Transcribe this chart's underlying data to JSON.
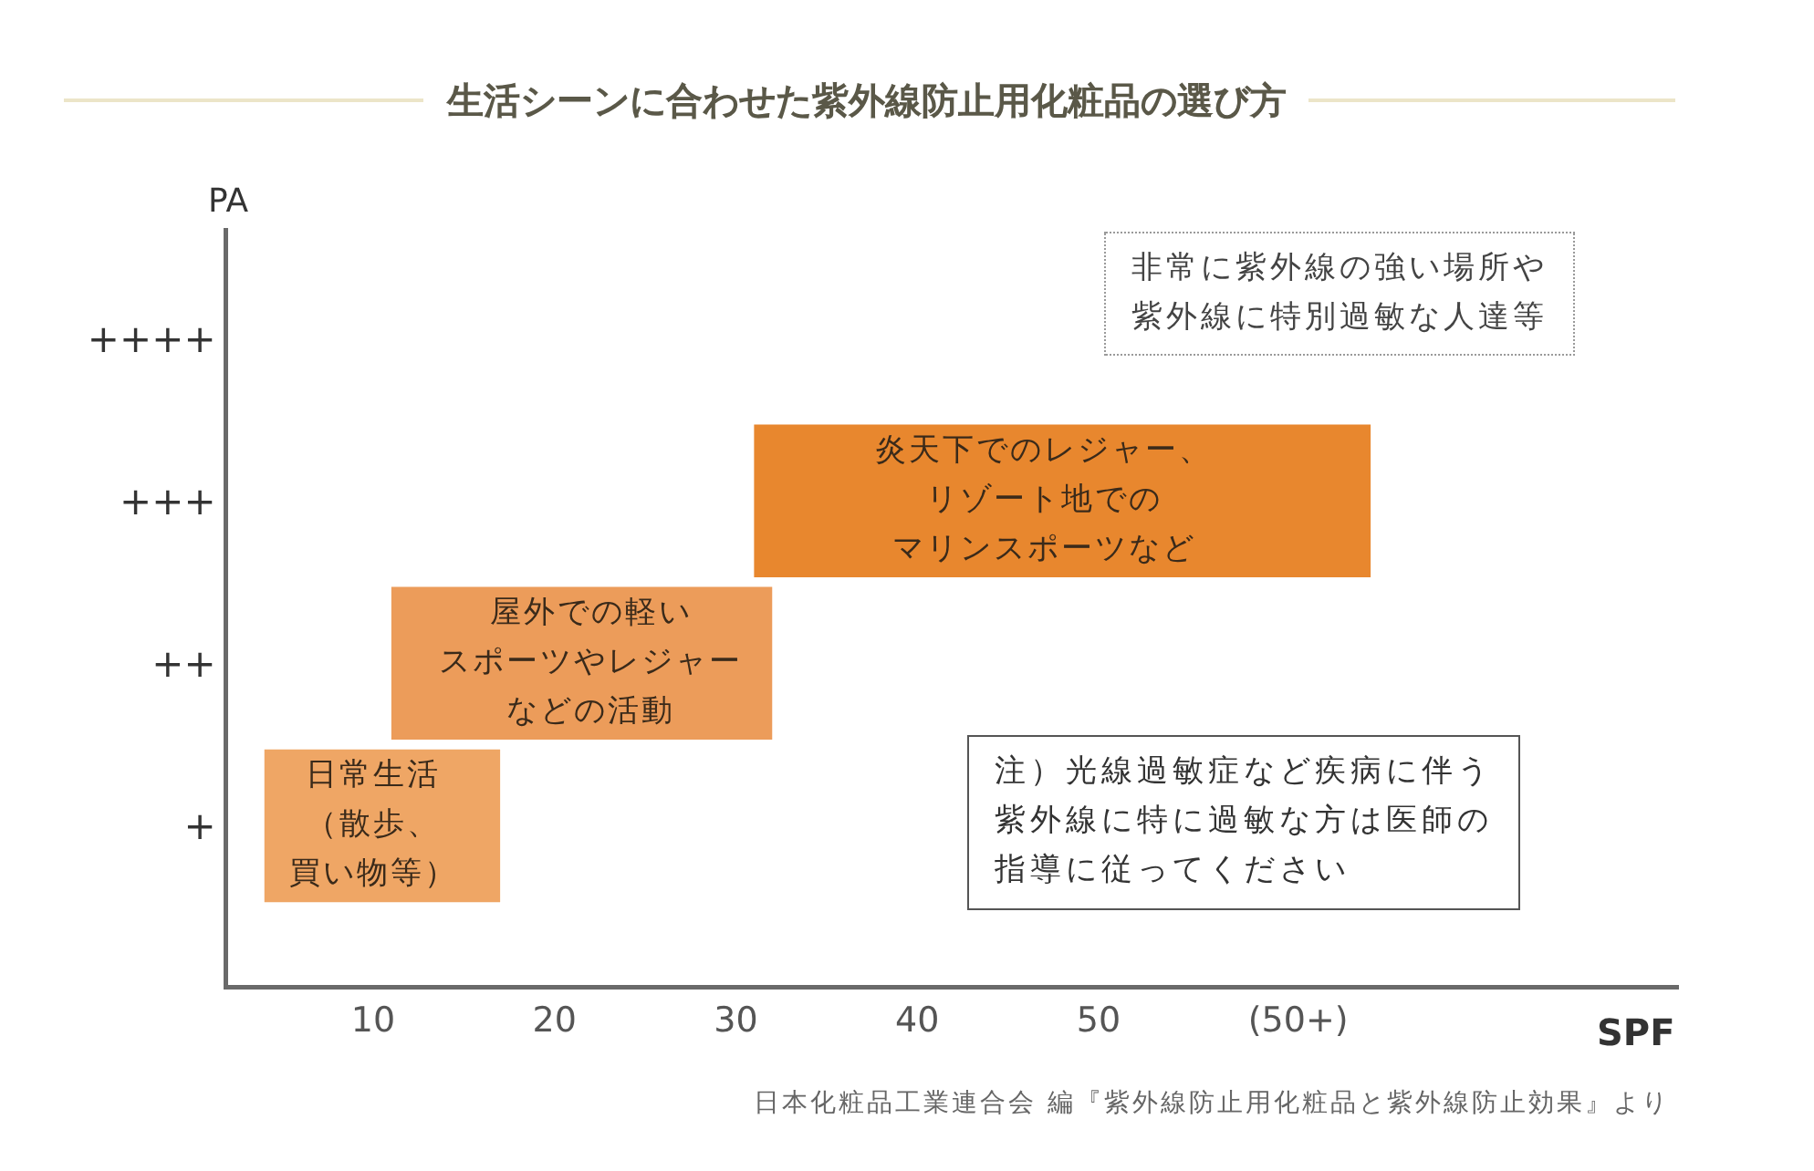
{
  "chart_data": {
    "type": "bar",
    "orientation": "horizontal",
    "title": "生活シーンに合わせた紫外線防止用化粧品の選び方",
    "xlabel": "SPF",
    "ylabel": "PA",
    "categories": [
      "++++",
      "+++",
      "++",
      "+"
    ],
    "values": [
      null,
      34,
      21,
      13
    ],
    "base": [
      null,
      31,
      11,
      4
    ],
    "colors": [
      null,
      "#e8872e",
      "#ec9c5a",
      "#efa665"
    ],
    "xlim": [
      2,
      82
    ],
    "xticks": [
      10,
      20,
      30,
      40,
      50,
      {
        "value": 61,
        "label": "(50+)"
      }
    ],
    "annotations": [
      {
        "text": "日常生活（散歩、買い物等）",
        "x": 10,
        "y": "+"
      },
      {
        "text": "屋外での軽いスポーツやレジャーなどの活動",
        "x": 22,
        "y": "++"
      },
      {
        "text": "炎天下でのレジャー、リゾート地でのマリンスポーツなど",
        "x": 47,
        "y": "+++"
      },
      "非常に紫外線の強い場所や紫外線に特別過敏な人達等",
      "注）光線過敏症など疾病に伴う紫外線に特に過敏な方は医師の指導に従ってください",
      "日本化粧品工業連合会 編『紫外線防止用化粧品と紫外線防止効果』より"
    ]
  }
}
